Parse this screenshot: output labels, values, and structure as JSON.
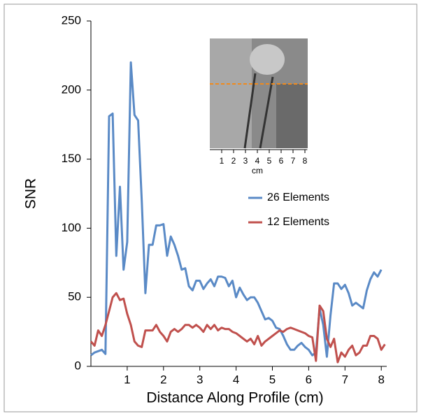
{
  "chart_data": {
    "type": "line",
    "xlabel": "Distance Along Profile (cm)",
    "ylabel": "SNR",
    "xlim": [
      0,
      8.15
    ],
    "ylim": [
      0,
      250
    ],
    "xticks": [
      1,
      2,
      3,
      4,
      5,
      6,
      7,
      8
    ],
    "yticks": [
      0,
      50,
      100,
      150,
      200,
      250
    ],
    "legend": "right",
    "series": [
      {
        "name": "26 Elements",
        "color": "#5a8ac6",
        "x": [
          0,
          0.1,
          0.2,
          0.3,
          0.4,
          0.5,
          0.6,
          0.7,
          0.8,
          0.9,
          1,
          1.1,
          1.2,
          1.3,
          1.4,
          1.5,
          1.6,
          1.7,
          1.8,
          1.9,
          2,
          2.1,
          2.2,
          2.3,
          2.4,
          2.5,
          2.6,
          2.7,
          2.8,
          2.9,
          3,
          3.1,
          3.2,
          3.3,
          3.4,
          3.5,
          3.6,
          3.7,
          3.8,
          3.9,
          4,
          4.1,
          4.2,
          4.3,
          4.4,
          4.5,
          4.6,
          4.7,
          4.8,
          4.9,
          5,
          5.1,
          5.2,
          5.3,
          5.4,
          5.5,
          5.6,
          5.7,
          5.8,
          5.9,
          6,
          6.1,
          6.2,
          6.3,
          6.4,
          6.5,
          6.6,
          6.7,
          6.8,
          6.9,
          7,
          7.1,
          7.2,
          7.3,
          7.4,
          7.5,
          7.6,
          7.7,
          7.8,
          7.9,
          8
        ],
        "values": [
          8,
          10,
          11,
          12,
          9,
          181,
          183,
          80,
          130,
          70,
          90,
          220,
          182,
          178,
          120,
          53,
          88,
          88,
          102,
          102,
          103,
          80,
          94,
          88,
          80,
          70,
          71,
          58,
          55,
          62,
          62,
          56,
          60,
          63,
          58,
          65,
          65,
          64,
          58,
          62,
          50,
          57,
          52,
          48,
          50,
          50,
          46,
          40,
          34,
          35,
          33,
          28,
          27,
          22,
          16,
          12,
          12,
          15,
          17,
          14,
          12,
          8,
          10,
          42,
          30,
          7,
          37,
          60,
          60,
          56,
          59,
          53,
          44,
          46,
          44,
          42,
          55,
          63,
          68,
          65,
          70
        ]
      },
      {
        "name": "12 Elements",
        "color": "#c0504d",
        "x": [
          0,
          0.1,
          0.2,
          0.3,
          0.4,
          0.5,
          0.6,
          0.7,
          0.8,
          0.9,
          1,
          1.1,
          1.2,
          1.3,
          1.4,
          1.5,
          1.6,
          1.7,
          1.8,
          1.9,
          2,
          2.1,
          2.2,
          2.3,
          2.4,
          2.5,
          2.6,
          2.7,
          2.8,
          2.9,
          3,
          3.1,
          3.2,
          3.3,
          3.4,
          3.5,
          3.6,
          3.7,
          3.8,
          3.9,
          4,
          4.1,
          4.2,
          4.3,
          4.4,
          4.5,
          4.6,
          4.7,
          4.8,
          4.9,
          5,
          5.1,
          5.2,
          5.3,
          5.4,
          5.5,
          5.6,
          5.7,
          5.8,
          5.9,
          6,
          6.1,
          6.2,
          6.3,
          6.4,
          6.5,
          6.6,
          6.7,
          6.8,
          6.9,
          7,
          7.1,
          7.2,
          7.3,
          7.4,
          7.5,
          7.6,
          7.7,
          7.8,
          7.9,
          8,
          8.1
        ],
        "values": [
          18,
          15,
          26,
          22,
          30,
          40,
          50,
          53,
          48,
          49,
          38,
          30,
          18,
          15,
          14,
          26,
          26,
          26,
          30,
          25,
          22,
          18,
          25,
          27,
          25,
          27,
          30,
          30,
          28,
          30,
          28,
          25,
          30,
          27,
          30,
          26,
          28,
          27,
          27,
          25,
          24,
          22,
          20,
          18,
          20,
          16,
          22,
          15,
          18,
          20,
          22,
          24,
          26,
          25,
          27,
          28,
          27,
          26,
          25,
          24,
          22,
          21,
          4,
          44,
          40,
          20,
          14,
          20,
          3,
          10,
          7,
          12,
          15,
          8,
          10,
          15,
          15,
          22,
          22,
          20,
          12,
          16
        ]
      }
    ],
    "inset": {
      "xticks": [
        1,
        2,
        3,
        4,
        5,
        6,
        7,
        8
      ],
      "xlabel": "cm"
    }
  }
}
